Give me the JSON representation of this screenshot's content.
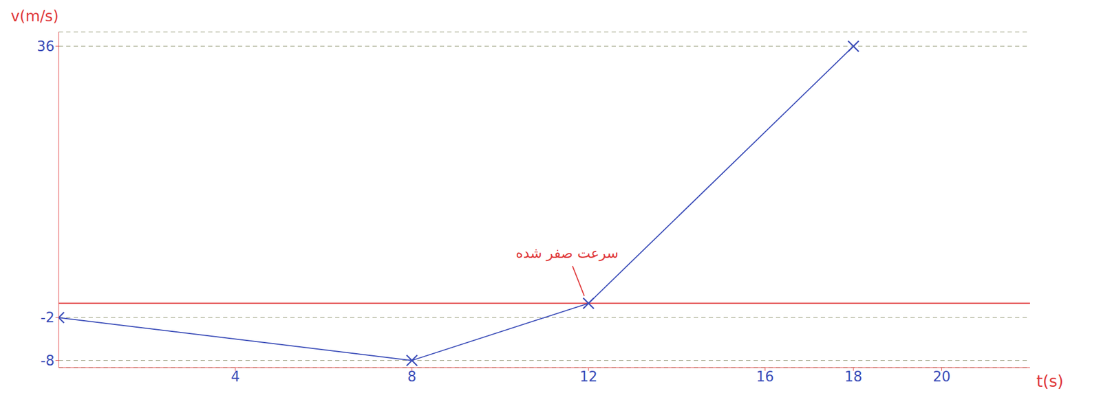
{
  "chart_data": {
    "type": "line",
    "x_label": "t(s)",
    "y_label": "v(m/s)",
    "x": [
      0,
      8,
      12,
      18
    ],
    "series": [
      {
        "name": "v",
        "color": "#3a4cb8",
        "values": [
          -2,
          -8,
          0,
          36
        ],
        "marker": "x",
        "line_style": "solid"
      }
    ],
    "xlim": [
      0,
      22
    ],
    "xticks": [
      4,
      8,
      12,
      16,
      18,
      20
    ],
    "ylim": [
      -9,
      38
    ],
    "yticks": [
      -8,
      -2,
      36
    ],
    "grid": true,
    "annotations": [
      {
        "text": "سرعت صفر شده",
        "x": 12,
        "y": 0,
        "color": "#e0383a"
      }
    ]
  }
}
